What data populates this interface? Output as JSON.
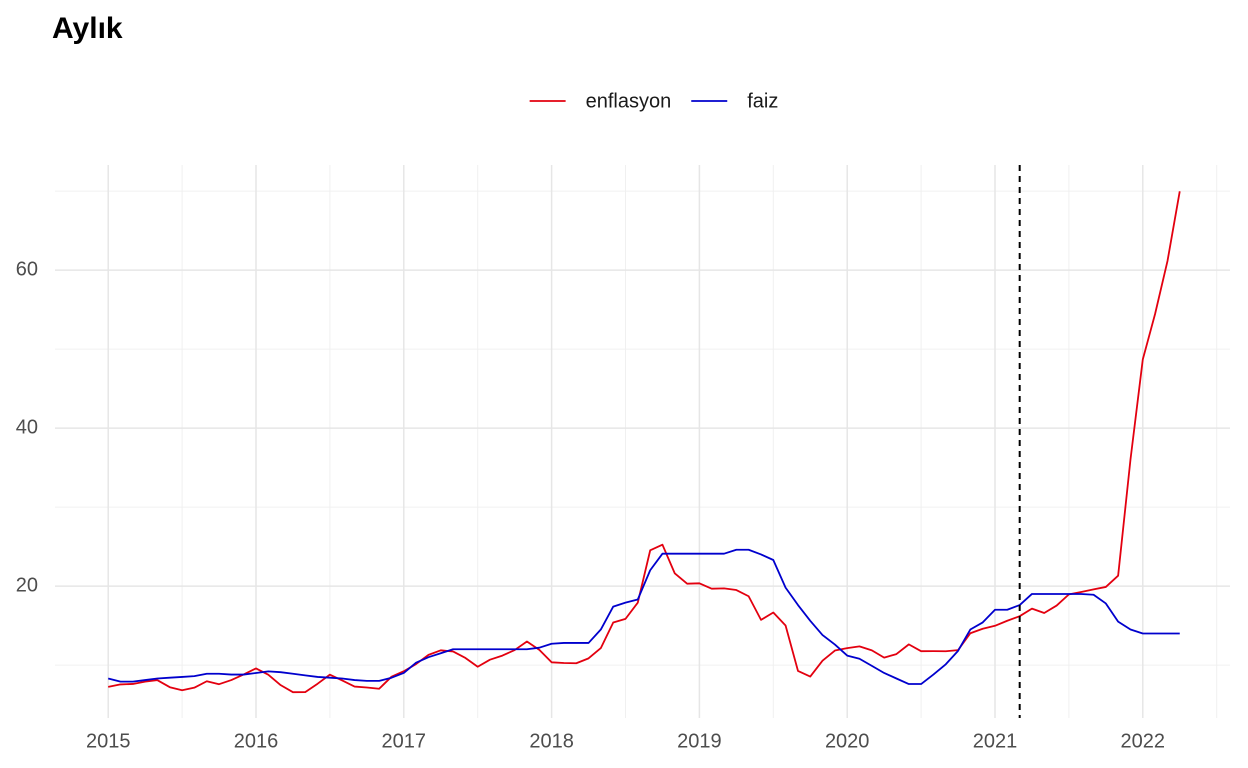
{
  "chart_data": {
    "type": "line",
    "title": "Aylık",
    "x": [
      2015,
      2015.083,
      2015.167,
      2015.25,
      2015.333,
      2015.417,
      2015.5,
      2015.583,
      2015.667,
      2015.75,
      2015.833,
      2015.917,
      2016,
      2016.083,
      2016.167,
      2016.25,
      2016.333,
      2016.417,
      2016.5,
      2016.583,
      2016.667,
      2016.75,
      2016.833,
      2016.917,
      2017,
      2017.083,
      2017.167,
      2017.25,
      2017.333,
      2017.417,
      2017.5,
      2017.583,
      2017.667,
      2017.75,
      2017.833,
      2017.917,
      2018,
      2018.083,
      2018.167,
      2018.25,
      2018.333,
      2018.417,
      2018.5,
      2018.583,
      2018.667,
      2018.75,
      2018.833,
      2018.917,
      2019,
      2019.083,
      2019.167,
      2019.25,
      2019.333,
      2019.417,
      2019.5,
      2019.583,
      2019.667,
      2019.75,
      2019.833,
      2019.917,
      2020,
      2020.083,
      2020.167,
      2020.25,
      2020.333,
      2020.417,
      2020.5,
      2020.583,
      2020.667,
      2020.75,
      2020.833,
      2020.917,
      2021,
      2021.083,
      2021.167,
      2021.25,
      2021.333,
      2021.417,
      2021.5,
      2021.583,
      2021.667,
      2021.75,
      2021.833,
      2021.917,
      2022,
      2022.083,
      2022.167,
      2022.25
    ],
    "series": [
      {
        "name": "enflasyon",
        "color": "#e3000f",
        "values": [
          7.24,
          7.55,
          7.61,
          7.91,
          8.09,
          7.2,
          6.81,
          7.14,
          7.95,
          7.58,
          8.1,
          8.81,
          9.58,
          8.78,
          7.46,
          6.57,
          6.58,
          7.64,
          8.79,
          8.05,
          7.28,
          7.16,
          7.0,
          8.53,
          9.22,
          10.13,
          11.29,
          11.87,
          11.72,
          10.9,
          9.79,
          10.68,
          11.2,
          11.9,
          12.98,
          11.92,
          10.35,
          10.26,
          10.23,
          10.85,
          12.15,
          15.39,
          15.85,
          17.9,
          24.52,
          25.24,
          21.62,
          20.3,
          20.35,
          19.67,
          19.71,
          19.5,
          18.71,
          15.72,
          16.65,
          15.01,
          9.26,
          8.55,
          10.56,
          11.84,
          12.15,
          12.37,
          11.86,
          10.94,
          11.39,
          12.62,
          11.76,
          11.77,
          11.75,
          11.89,
          14.03,
          14.6,
          14.97,
          15.61,
          16.19,
          17.14,
          16.59,
          17.53,
          18.95,
          19.25,
          19.58,
          19.89,
          21.31,
          36.08,
          48.69,
          54.44,
          61.14,
          69.97
        ]
      },
      {
        "name": "faiz",
        "color": "#0000cd",
        "values": [
          8.3,
          7.9,
          7.9,
          8.1,
          8.3,
          8.4,
          8.5,
          8.6,
          8.9,
          8.9,
          8.8,
          8.8,
          9.0,
          9.2,
          9.1,
          8.9,
          8.7,
          8.5,
          8.4,
          8.3,
          8.1,
          8.0,
          8.0,
          8.4,
          9.0,
          10.3,
          11.0,
          11.5,
          12.0,
          12.0,
          12.0,
          12.0,
          12.0,
          12.0,
          12.0,
          12.2,
          12.7,
          12.8,
          12.8,
          12.8,
          14.5,
          17.4,
          17.9,
          18.3,
          22.0,
          24.1,
          24.1,
          24.1,
          24.1,
          24.1,
          24.1,
          24.6,
          24.6,
          24.0,
          23.3,
          19.8,
          17.6,
          15.6,
          13.8,
          12.6,
          11.2,
          10.8,
          9.9,
          9.0,
          8.3,
          7.6,
          7.6,
          8.8,
          10.1,
          11.8,
          14.5,
          15.4,
          17.0,
          17.0,
          17.6,
          19.0,
          19.0,
          19.0,
          19.0,
          19.0,
          18.9,
          17.8,
          15.5,
          14.5,
          14.0,
          14.0,
          14.0,
          14.0
        ]
      }
    ],
    "xlim": [
      2014.64,
      2022.59
    ],
    "xticks": [
      2015,
      2016,
      2017,
      2018,
      2019,
      2020,
      2021,
      2022
    ],
    "xminorticks": [
      2015.5,
      2016.5,
      2017.5,
      2018.5,
      2019.5,
      2020.5,
      2021.5,
      2022.5
    ],
    "ylim": [
      3.3,
      73.3
    ],
    "yticks": [
      20,
      40,
      60
    ],
    "yminorticks": [
      10,
      30,
      50,
      70
    ],
    "grid": true,
    "legend": "top",
    "vline": 2021.167
  }
}
